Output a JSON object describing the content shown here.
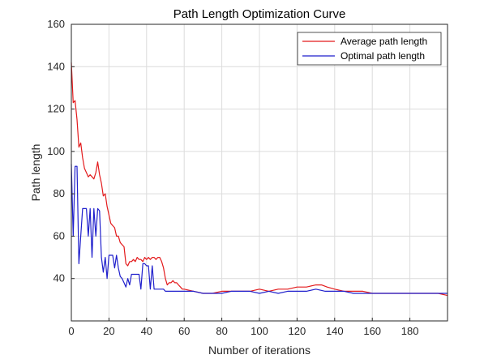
{
  "chart_data": {
    "type": "line",
    "title": "Path Length Optimization Curve",
    "xlabel": "Number of iterations",
    "ylabel": "Path length",
    "xlim": [
      0,
      200
    ],
    "ylim": [
      20,
      160
    ],
    "xticks": [
      0,
      20,
      40,
      60,
      80,
      100,
      120,
      140,
      160,
      180
    ],
    "yticks": [
      40,
      60,
      80,
      100,
      120,
      140,
      160
    ],
    "grid": true,
    "legend_position": "top-right",
    "series": [
      {
        "name": "Average path length",
        "color": "#e31a1c",
        "x": [
          0,
          1,
          2,
          3,
          4,
          5,
          6,
          7,
          8,
          9,
          10,
          11,
          12,
          13,
          14,
          15,
          16,
          17,
          18,
          19,
          20,
          21,
          22,
          23,
          24,
          25,
          26,
          27,
          28,
          29,
          30,
          31,
          32,
          33,
          34,
          35,
          36,
          37,
          38,
          39,
          40,
          41,
          42,
          43,
          44,
          45,
          46,
          47,
          48,
          49,
          50,
          51,
          52,
          53,
          54,
          55,
          56,
          57,
          58,
          59,
          60,
          65,
          70,
          75,
          80,
          85,
          90,
          95,
          100,
          105,
          110,
          115,
          120,
          125,
          130,
          133,
          136,
          140,
          145,
          150,
          155,
          160,
          165,
          170,
          175,
          180,
          185,
          190,
          195,
          200
        ],
        "values": [
          142,
          123,
          124,
          115,
          102,
          104,
          97,
          92,
          90,
          88,
          89,
          88,
          87,
          90,
          95,
          89,
          85,
          79,
          80,
          74,
          70,
          66,
          65,
          64,
          60,
          60,
          57,
          56,
          55,
          47,
          46,
          48,
          48,
          49,
          48,
          50,
          49,
          49,
          48,
          50,
          49,
          50,
          49,
          50,
          50,
          49,
          50,
          50,
          48,
          45,
          40,
          37,
          38,
          38,
          39,
          38,
          38,
          37,
          36,
          35,
          35,
          34,
          33,
          33,
          34,
          34,
          34,
          34,
          35,
          34,
          35,
          35,
          36,
          36,
          37,
          37,
          36,
          35,
          34,
          34,
          34,
          33,
          33,
          33,
          33,
          33,
          33,
          33,
          33,
          32
        ]
      },
      {
        "name": "Optimal path length",
        "color": "#1f1fcc",
        "x": [
          0,
          1,
          2,
          3,
          4,
          5,
          6,
          7,
          8,
          9,
          10,
          11,
          12,
          13,
          14,
          15,
          16,
          17,
          18,
          19,
          20,
          21,
          22,
          23,
          24,
          25,
          26,
          27,
          28,
          29,
          30,
          31,
          32,
          33,
          34,
          35,
          36,
          37,
          38,
          39,
          40,
          41,
          42,
          43,
          44,
          45,
          46,
          47,
          48,
          49,
          50,
          55,
          60,
          65,
          70,
          75,
          80,
          85,
          90,
          95,
          100,
          105,
          110,
          115,
          120,
          125,
          130,
          135,
          140,
          145,
          150,
          155,
          160,
          165,
          170,
          175,
          180,
          185,
          190,
          195,
          200
        ],
        "values": [
          94,
          60,
          93,
          93,
          47,
          60,
          73,
          73,
          73,
          60,
          73,
          50,
          73,
          60,
          73,
          72,
          50,
          43,
          50,
          40,
          51,
          51,
          51,
          45,
          51,
          45,
          41,
          40,
          38,
          36,
          40,
          37,
          42,
          42,
          42,
          42,
          42,
          35,
          47,
          47,
          46,
          46,
          35,
          46,
          35,
          35,
          35,
          35,
          35,
          35,
          34,
          34,
          34,
          34,
          33,
          33,
          33,
          34,
          34,
          34,
          33,
          34,
          33,
          34,
          34,
          34,
          35,
          34,
          34,
          34,
          33,
          33,
          33,
          33,
          33,
          33,
          33,
          33,
          33,
          33,
          33
        ]
      }
    ]
  }
}
